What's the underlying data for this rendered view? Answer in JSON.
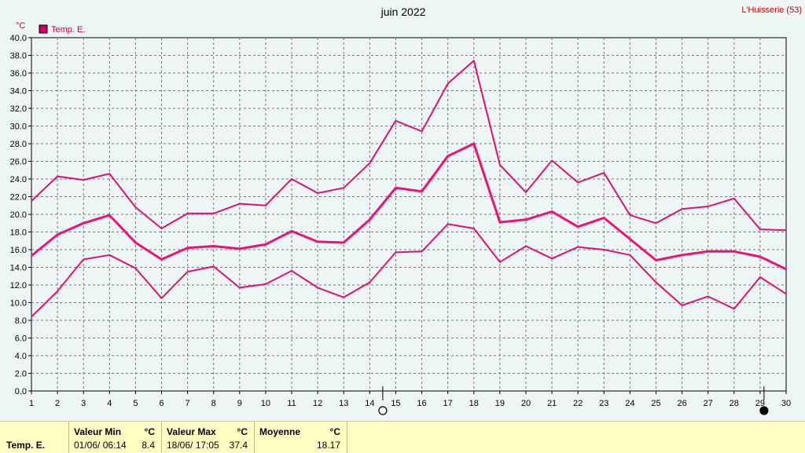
{
  "header": {
    "title": "juin 2022",
    "station": "L'Huisserie (53)",
    "unit": "°C",
    "legend_label": "Temp. E.",
    "legend_color": "#cc0066"
  },
  "chart_data": {
    "type": "line",
    "title": "juin 2022",
    "ylabel": "°C",
    "ylim": [
      0,
      40
    ],
    "yticks": [
      "0.0",
      "2.0",
      "4.0",
      "6.0",
      "8.0",
      "10.0",
      "12.0",
      "14.0",
      "16.0",
      "18.0",
      "20.0",
      "22.0",
      "24.0",
      "26.0",
      "28.0",
      "30.0",
      "32.0",
      "34.0",
      "36.0",
      "38.0",
      "40.0"
    ],
    "x": [
      1,
      2,
      3,
      4,
      5,
      6,
      7,
      8,
      9,
      10,
      11,
      12,
      13,
      14,
      15,
      16,
      17,
      18,
      19,
      20,
      21,
      22,
      23,
      24,
      25,
      26,
      27,
      28,
      29,
      30
    ],
    "xticks": [
      "1",
      "2",
      "3",
      "4",
      "5",
      "6",
      "7",
      "8",
      "9",
      "10",
      "11",
      "12",
      "13",
      "14",
      "15",
      "16",
      "17",
      "18",
      "19",
      "20",
      "21",
      "22",
      "23",
      "24",
      "25",
      "26",
      "27",
      "28",
      "29",
      "30"
    ],
    "grid": true,
    "legend": "top-left",
    "series": [
      {
        "name": "Temp. E.",
        "role": "max",
        "color": "#dd1177",
        "values": [
          21.5,
          24.3,
          23.9,
          24.6,
          20.8,
          18.4,
          20.1,
          20.1,
          21.2,
          21.0,
          24.0,
          22.4,
          23.0,
          25.8,
          30.6,
          29.4,
          34.8,
          37.4,
          25.6,
          22.5,
          26.1,
          23.6,
          24.7,
          19.9,
          19.0,
          20.6,
          20.9,
          21.8,
          18.3,
          18.2
        ]
      },
      {
        "name": "",
        "role": "mean",
        "color": "#ee1177",
        "values": [
          15.3,
          17.7,
          19.0,
          19.9,
          16.8,
          14.9,
          16.2,
          16.4,
          16.1,
          16.6,
          18.1,
          16.9,
          16.8,
          19.4,
          23.0,
          22.6,
          26.6,
          28.0,
          19.1,
          19.4,
          20.3,
          18.6,
          19.6,
          17.2,
          14.8,
          15.4,
          15.8,
          15.8,
          15.2,
          13.8
        ]
      },
      {
        "name": "",
        "role": "min",
        "color": "#dd1177",
        "values": [
          8.4,
          11.3,
          14.9,
          15.4,
          13.9,
          10.5,
          13.5,
          14.1,
          11.7,
          12.1,
          13.6,
          11.7,
          10.6,
          12.3,
          15.7,
          15.8,
          18.9,
          18.4,
          14.6,
          16.4,
          15.0,
          16.3,
          16.0,
          15.4,
          12.3,
          9.7,
          10.7,
          9.3,
          12.9,
          11.0
        ]
      }
    ],
    "moon_phases": [
      {
        "day": 14.5,
        "phase": "full"
      },
      {
        "day": 29.15,
        "phase": "new"
      }
    ]
  },
  "stats": {
    "series_label": "Temp. E.",
    "min_header": "Valeur Min",
    "min_unit": "°C",
    "min_date": "01/06/ 06:14",
    "min_value": "8.4",
    "max_header": "Valeur Max",
    "max_unit": "°C",
    "max_date": "18/06/ 17:05",
    "max_value": "37.4",
    "mean_header": "Moyenne",
    "mean_unit": "°C",
    "mean_value": "18.17"
  }
}
